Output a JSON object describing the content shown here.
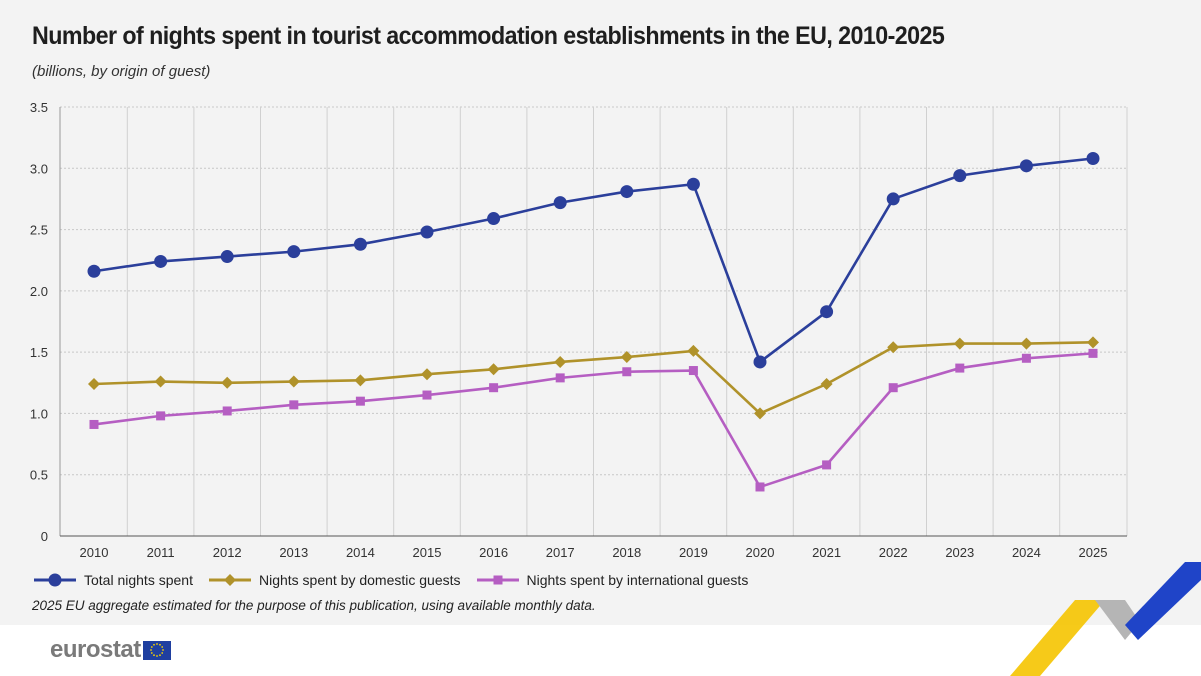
{
  "title": "Number of nights spent in tourist accommodation establishments in the EU, 2010-2025",
  "subtitle": "(billions, by origin of guest)",
  "note": "2025 EU aggregate estimated for the purpose of this publication, using available monthly data.",
  "logo": "eurostat",
  "chart_data": {
    "type": "line",
    "title": "Number of nights spent in tourist accommodation establishments in the EU, 2010-2025",
    "subtitle": "(billions, by origin of guest)",
    "x": [
      "2010",
      "2011",
      "2012",
      "2013",
      "2014",
      "2015",
      "2016",
      "2017",
      "2018",
      "2019",
      "2020",
      "2021",
      "2022",
      "2023",
      "2024",
      "2025"
    ],
    "ylim": [
      0,
      3.5
    ],
    "yticks": [
      "0",
      "0.5",
      "1.0",
      "1.5",
      "2.0",
      "2.5",
      "3.0",
      "3.5"
    ],
    "grid": true,
    "legend_position": "bottom",
    "series": [
      {
        "name": "Total nights spent",
        "color": "#2b3f9b",
        "marker": "circle",
        "values": [
          2.16,
          2.24,
          2.28,
          2.32,
          2.38,
          2.48,
          2.59,
          2.72,
          2.81,
          2.87,
          1.42,
          1.83,
          2.75,
          2.94,
          3.02,
          3.08
        ]
      },
      {
        "name": "Nights spent by domestic guests",
        "color": "#b0922a",
        "marker": "diamond",
        "values": [
          1.24,
          1.26,
          1.25,
          1.26,
          1.27,
          1.32,
          1.36,
          1.42,
          1.46,
          1.51,
          1.0,
          1.24,
          1.54,
          1.57,
          1.57,
          1.58
        ]
      },
      {
        "name": "Nights spent by international guests",
        "color": "#b55ec2",
        "marker": "square",
        "values": [
          0.91,
          0.98,
          1.02,
          1.07,
          1.1,
          1.15,
          1.21,
          1.29,
          1.34,
          1.35,
          0.4,
          0.58,
          1.21,
          1.37,
          1.45,
          1.49
        ]
      }
    ]
  }
}
